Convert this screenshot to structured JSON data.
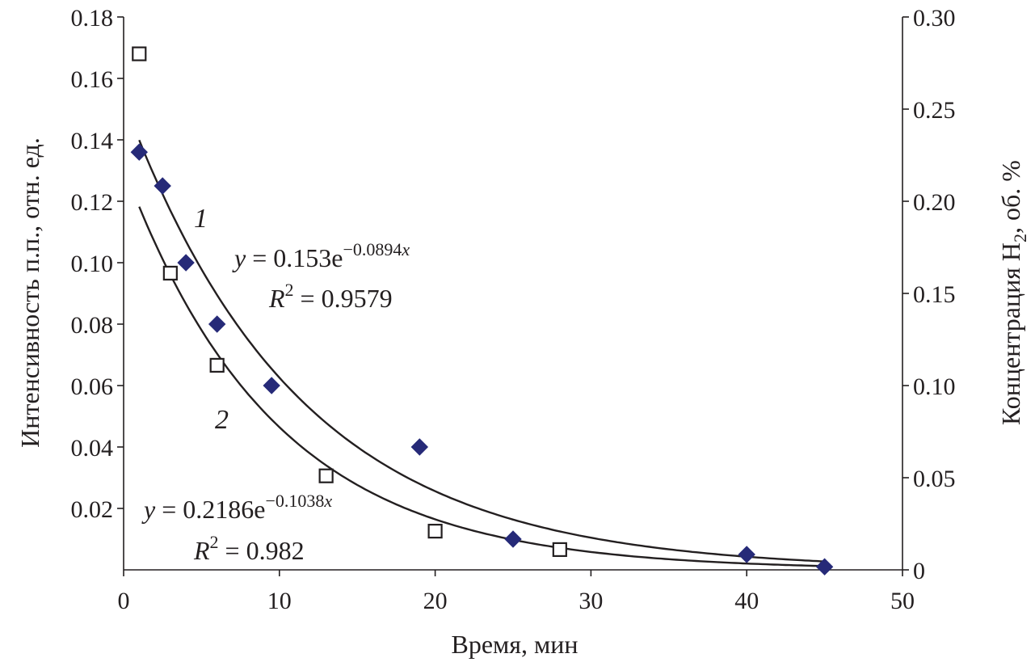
{
  "chart_data": {
    "type": "scatter",
    "title": "",
    "xlabel": "Время, мин",
    "ylabel_left": "Интенсивность п.п., отн. ед.",
    "ylabel_right": {
      "main": "Концентрация H",
      "sub": "2",
      "tail": ", об. %"
    },
    "xlim": [
      0,
      50
    ],
    "ylim_left": [
      0,
      0.18
    ],
    "ylim_right": [
      0,
      0.3
    ],
    "x_ticks": [
      "0",
      "10",
      "20",
      "30",
      "40",
      "50"
    ],
    "y_left_ticks": [
      "0.18",
      "0.16",
      "0.14",
      "0.12",
      "0.10",
      "0.08",
      "0.06",
      "0.04",
      "0.02"
    ],
    "y_left_tick_values": [
      0.18,
      0.16,
      0.14,
      0.12,
      0.1,
      0.08,
      0.06,
      0.04,
      0.02
    ],
    "y_right_ticks": [
      "0.30",
      "0.25",
      "0.20",
      "0.15",
      "0.10",
      "0.05",
      "0"
    ],
    "y_right_tick_values": [
      0.3,
      0.25,
      0.2,
      0.15,
      0.1,
      0.05,
      0
    ],
    "grid": false,
    "series": [
      {
        "label": "1",
        "marker": "diamond-filled",
        "color": "#262a78",
        "axis": "left",
        "x": [
          1,
          2.5,
          4,
          6,
          9.5,
          19,
          25,
          40,
          45
        ],
        "y": [
          0.136,
          0.125,
          0.1,
          0.08,
          0.06,
          0.04,
          0.01,
          0.005,
          0.001
        ],
        "fit": {
          "a": 0.153,
          "b": -0.0894
        }
      },
      {
        "label": "2",
        "marker": "square-open",
        "color": "#231f20",
        "axis": "right",
        "x": [
          1,
          3,
          6,
          13,
          20,
          28
        ],
        "y": [
          0.28,
          0.161,
          0.111,
          0.051,
          0.021,
          0.011
        ],
        "fit": {
          "a": 0.2186,
          "b": -0.1038
        }
      }
    ],
    "annotations": {
      "eq1": {
        "y": "y",
        "eq": " = 0.153e",
        "exp": "−0.0894",
        "x": "x"
      },
      "r1": {
        "R": "R",
        "sup": "2",
        "val": " = 0.9579"
      },
      "eq2": {
        "y": "y",
        "eq": " = 0.2186e",
        "exp": "−0.1038",
        "x": "x"
      },
      "r2": {
        "R": "R",
        "sup": "2",
        "val": " = 0.982"
      }
    }
  }
}
